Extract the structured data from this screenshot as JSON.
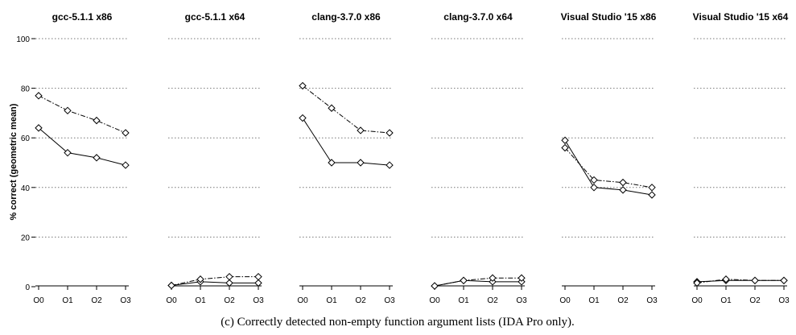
{
  "caption": "(c) Correctly detected non-empty function argument lists (IDA Pro only).",
  "chart_data": {
    "type": "line",
    "ylabel": "% correct (geometric mean)",
    "ylim": [
      0,
      100
    ],
    "yticks": [
      0,
      20,
      40,
      60,
      80,
      100
    ],
    "categories": [
      "O0",
      "O1",
      "O2",
      "O3"
    ],
    "grid": "horizontal dotted",
    "marker": "diamond",
    "panels": [
      {
        "title": "gcc-5.1.1 x86",
        "series": [
          {
            "style": "solid",
            "values": [
              64,
              54,
              52,
              49
            ]
          },
          {
            "style": "dash-dot",
            "values": [
              77,
              71,
              67,
              62
            ]
          }
        ]
      },
      {
        "title": "gcc-5.1.1 x64",
        "series": [
          {
            "style": "solid",
            "values": [
              0.5,
              2,
              1.5,
              1.5
            ]
          },
          {
            "style": "dash-dot",
            "values": [
              0.5,
              3,
              4,
              4
            ]
          }
        ]
      },
      {
        "title": "clang-3.7.0 x86",
        "series": [
          {
            "style": "solid",
            "values": [
              68,
              50,
              50,
              49
            ]
          },
          {
            "style": "dash-dot",
            "values": [
              81,
              72,
              63,
              62
            ]
          }
        ]
      },
      {
        "title": "clang-3.7.0 x64",
        "series": [
          {
            "style": "solid",
            "values": [
              0.3,
              2.5,
              2,
              2
            ]
          },
          {
            "style": "dash-dot",
            "values": [
              0.3,
              2.5,
              3.5,
              3.5
            ]
          }
        ]
      },
      {
        "title": "Visual Studio '15 x86",
        "series": [
          {
            "style": "solid",
            "values": [
              59,
              40,
              39,
              37
            ]
          },
          {
            "style": "dash-dot",
            "values": [
              56,
              43,
              42,
              40
            ]
          }
        ]
      },
      {
        "title": "Visual Studio '15 x64",
        "series": [
          {
            "style": "solid",
            "values": [
              2,
              2.5,
              2.5,
              2.5
            ]
          },
          {
            "style": "dash-dot",
            "values": [
              1.5,
              3,
              2.5,
              2.5
            ]
          }
        ]
      }
    ]
  }
}
